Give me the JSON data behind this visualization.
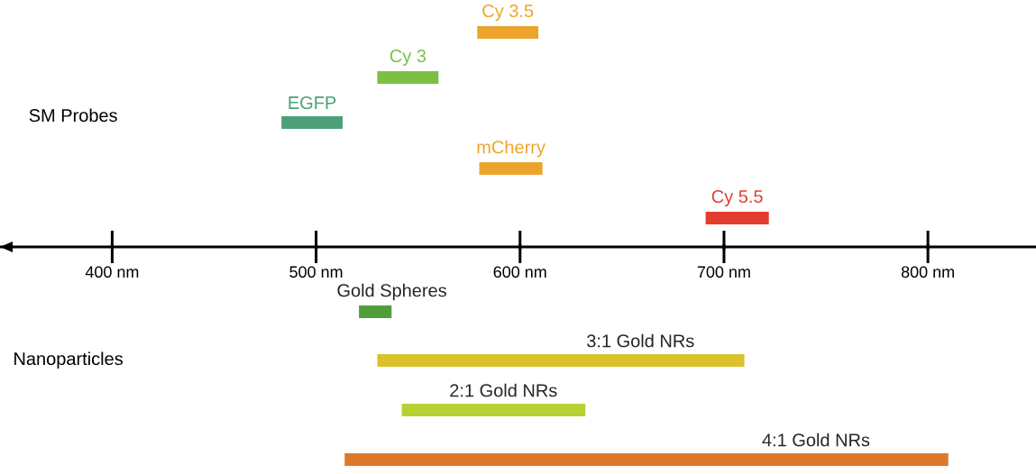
{
  "chart_data": {
    "type": "bar",
    "orientation": "horizontal",
    "categories": [
      null,
      null,
      null,
      null,
      null,
      null,
      null,
      null,
      null
    ],
    "base": [
      579,
      530,
      483,
      580,
      691,
      521,
      530,
      542,
      514
    ],
    "values": [
      30,
      30,
      30,
      31,
      31,
      16,
      180,
      90,
      296
    ],
    "colors": [
      "#eda42e",
      "#7cc043",
      "#4aa07a",
      "#eda42e",
      "#e33d30",
      "#4e9e3a",
      "#d9c22c",
      "#b9d032",
      "#dc7a2a"
    ],
    "xlim": [
      345,
      853
    ],
    "xticks": [
      {
        "value": 400,
        "label": "400 nm"
      },
      {
        "value": 500,
        "label": "500 nm"
      },
      {
        "value": 600,
        "label": "600 nm"
      },
      {
        "value": 700,
        "label": "700 nm"
      },
      {
        "value": 800,
        "label": "800 nm"
      }
    ],
    "annotations": [
      "SM Probes",
      "Nanoparticles",
      "Cy 3.5",
      "Cy 3",
      "EGFP",
      "mCherry",
      "Cy 5.5",
      "Gold Spheres",
      "3:1 Gold NRs",
      "2:1 Gold NRs",
      "4:1 Gold NRs"
    ],
    "grid": false
  }
}
